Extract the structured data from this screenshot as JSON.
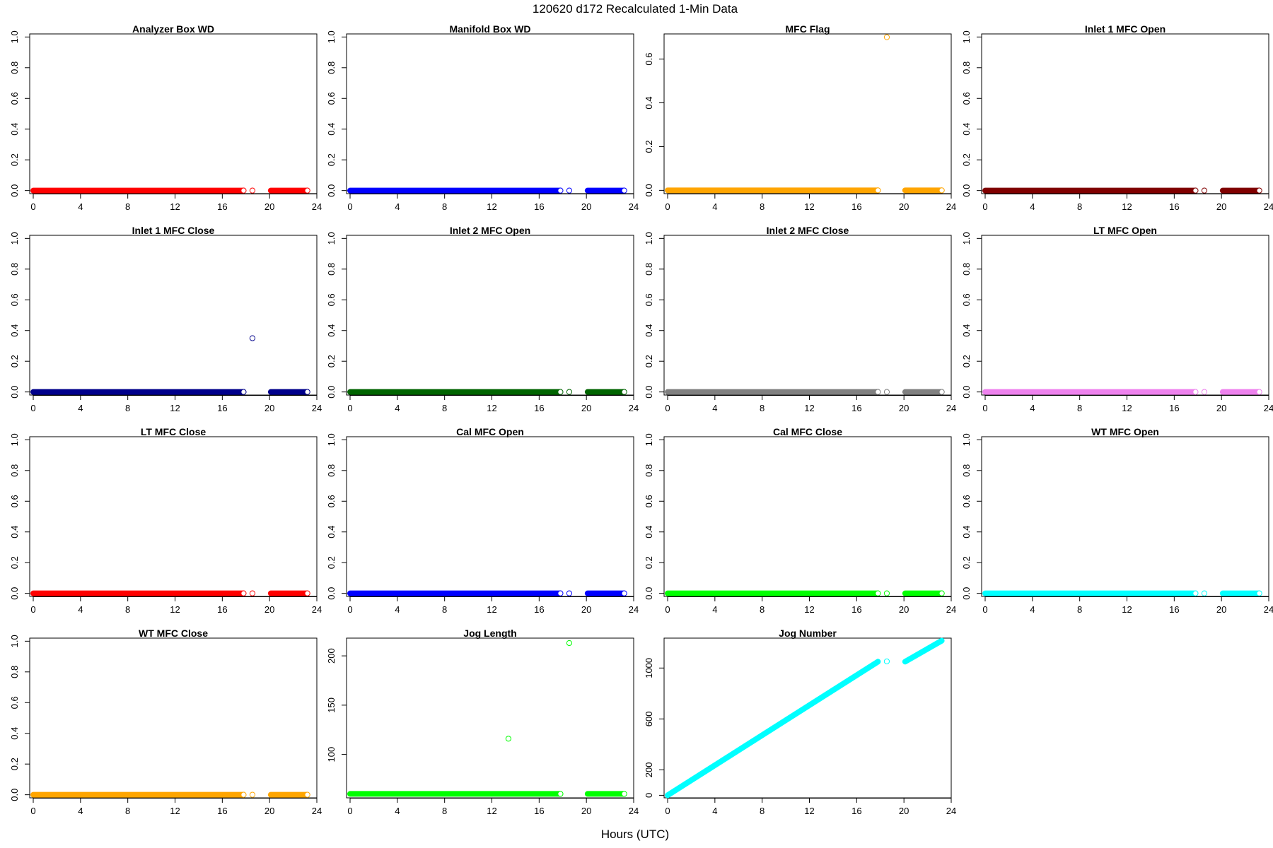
{
  "figure": {
    "title": "120620   d172   Recalculated 1-Min Data",
    "xlabel": "Hours (UTC)"
  },
  "chart_data": [
    {
      "type": "scatter",
      "title": "Analyzer Box WD",
      "color": "#ff0000",
      "xticks": [
        0,
        4,
        8,
        12,
        16,
        20,
        24
      ],
      "yticks": [
        0.0,
        0.2,
        0.4,
        0.6,
        0.8,
        1.0
      ],
      "ylim": [
        -0.02,
        1.02
      ],
      "xlim": [
        -0.3,
        24
      ],
      "segments": [
        {
          "from": 0,
          "to": 17.8,
          "y": 0
        },
        {
          "from": 20.1,
          "to": 23.2,
          "y": 0
        }
      ],
      "points": [
        {
          "x": 18.55,
          "y": 0
        }
      ]
    },
    {
      "type": "scatter",
      "title": "Manifold Box WD",
      "color": "#0000ff",
      "xticks": [
        0,
        4,
        8,
        12,
        16,
        20,
        24
      ],
      "yticks": [
        0.0,
        0.2,
        0.4,
        0.6,
        0.8,
        1.0
      ],
      "ylim": [
        -0.02,
        1.02
      ],
      "xlim": [
        -0.3,
        24
      ],
      "segments": [
        {
          "from": 0,
          "to": 17.8,
          "y": 0
        },
        {
          "from": 20.1,
          "to": 23.2,
          "y": 0
        }
      ],
      "points": [
        {
          "x": 18.55,
          "y": 0
        }
      ]
    },
    {
      "type": "scatter",
      "title": "MFC Flag",
      "color": "#ffa500",
      "xticks": [
        0,
        4,
        8,
        12,
        16,
        20,
        24
      ],
      "yticks": [
        0.0,
        0.2,
        0.4,
        0.6
      ],
      "ylim": [
        -0.015,
        0.715
      ],
      "xlim": [
        -0.3,
        24
      ],
      "segments": [
        {
          "from": 0,
          "to": 17.8,
          "y": 0
        },
        {
          "from": 20.1,
          "to": 23.2,
          "y": 0
        }
      ],
      "points": [
        {
          "x": 18.55,
          "y": 0.7
        }
      ]
    },
    {
      "type": "scatter",
      "title": "Inlet 1 MFC Open",
      "color": "#800000",
      "xticks": [
        0,
        4,
        8,
        12,
        16,
        20,
        24
      ],
      "yticks": [
        0.0,
        0.2,
        0.4,
        0.6,
        0.8,
        1.0
      ],
      "ylim": [
        -0.02,
        1.02
      ],
      "xlim": [
        -0.3,
        24
      ],
      "segments": [
        {
          "from": 0,
          "to": 17.8,
          "y": 0
        },
        {
          "from": 20.1,
          "to": 23.2,
          "y": 0
        }
      ],
      "points": [
        {
          "x": 18.55,
          "y": 0
        }
      ]
    },
    {
      "type": "scatter",
      "title": "Inlet 1 MFC Close",
      "color": "#00008b",
      "xticks": [
        0,
        4,
        8,
        12,
        16,
        20,
        24
      ],
      "yticks": [
        0.0,
        0.2,
        0.4,
        0.6,
        0.8,
        1.0
      ],
      "ylim": [
        -0.02,
        1.02
      ],
      "xlim": [
        -0.3,
        24
      ],
      "segments": [
        {
          "from": 0,
          "to": 17.8,
          "y": 0
        },
        {
          "from": 20.1,
          "to": 23.2,
          "y": 0
        }
      ],
      "points": [
        {
          "x": 18.55,
          "y": 0.35
        }
      ]
    },
    {
      "type": "scatter",
      "title": "Inlet 2 MFC Open",
      "color": "#006400",
      "xticks": [
        0,
        4,
        8,
        12,
        16,
        20,
        24
      ],
      "yticks": [
        0.0,
        0.2,
        0.4,
        0.6,
        0.8,
        1.0
      ],
      "ylim": [
        -0.02,
        1.02
      ],
      "xlim": [
        -0.3,
        24
      ],
      "segments": [
        {
          "from": 0,
          "to": 17.8,
          "y": 0
        },
        {
          "from": 20.1,
          "to": 23.2,
          "y": 0
        }
      ],
      "points": [
        {
          "x": 18.55,
          "y": 0
        }
      ]
    },
    {
      "type": "scatter",
      "title": "Inlet 2 MFC Close",
      "color": "#808080",
      "xticks": [
        0,
        4,
        8,
        12,
        16,
        20,
        24
      ],
      "yticks": [
        0.0,
        0.2,
        0.4,
        0.6,
        0.8,
        1.0
      ],
      "ylim": [
        -0.02,
        1.02
      ],
      "xlim": [
        -0.3,
        24
      ],
      "segments": [
        {
          "from": 0,
          "to": 17.8,
          "y": 0
        },
        {
          "from": 20.1,
          "to": 23.2,
          "y": 0
        }
      ],
      "points": [
        {
          "x": 18.55,
          "y": 0
        }
      ]
    },
    {
      "type": "scatter",
      "title": "LT MFC Open",
      "color": "#ee82ee",
      "xticks": [
        0,
        4,
        8,
        12,
        16,
        20,
        24
      ],
      "yticks": [
        0.0,
        0.2,
        0.4,
        0.6,
        0.8,
        1.0
      ],
      "ylim": [
        -0.02,
        1.02
      ],
      "xlim": [
        -0.3,
        24
      ],
      "segments": [
        {
          "from": 0,
          "to": 17.8,
          "y": 0
        },
        {
          "from": 20.1,
          "to": 23.2,
          "y": 0
        }
      ],
      "points": [
        {
          "x": 18.55,
          "y": 0
        }
      ]
    },
    {
      "type": "scatter",
      "title": "LT MFC Close",
      "color": "#ff0000",
      "xticks": [
        0,
        4,
        8,
        12,
        16,
        20,
        24
      ],
      "yticks": [
        0.0,
        0.2,
        0.4,
        0.6,
        0.8,
        1.0
      ],
      "ylim": [
        -0.02,
        1.02
      ],
      "xlim": [
        -0.3,
        24
      ],
      "segments": [
        {
          "from": 0,
          "to": 17.8,
          "y": 0
        },
        {
          "from": 20.1,
          "to": 23.2,
          "y": 0
        }
      ],
      "points": [
        {
          "x": 18.55,
          "y": 0
        }
      ]
    },
    {
      "type": "scatter",
      "title": "Cal MFC Open",
      "color": "#0000ff",
      "xticks": [
        0,
        4,
        8,
        12,
        16,
        20,
        24
      ],
      "yticks": [
        0.0,
        0.2,
        0.4,
        0.6,
        0.8,
        1.0
      ],
      "ylim": [
        -0.02,
        1.02
      ],
      "xlim": [
        -0.3,
        24
      ],
      "segments": [
        {
          "from": 0,
          "to": 17.8,
          "y": 0
        },
        {
          "from": 20.1,
          "to": 23.2,
          "y": 0
        }
      ],
      "points": [
        {
          "x": 18.55,
          "y": 0
        }
      ]
    },
    {
      "type": "scatter",
      "title": "Cal MFC Close",
      "color": "#00ff00",
      "xticks": [
        0,
        4,
        8,
        12,
        16,
        20,
        24
      ],
      "yticks": [
        0.0,
        0.2,
        0.4,
        0.6,
        0.8,
        1.0
      ],
      "ylim": [
        -0.02,
        1.02
      ],
      "xlim": [
        -0.3,
        24
      ],
      "segments": [
        {
          "from": 0,
          "to": 17.8,
          "y": 0
        },
        {
          "from": 20.1,
          "to": 23.2,
          "y": 0
        }
      ],
      "points": [
        {
          "x": 18.55,
          "y": 0
        }
      ]
    },
    {
      "type": "scatter",
      "title": "WT MFC Open",
      "color": "#00ffff",
      "xticks": [
        0,
        4,
        8,
        12,
        16,
        20,
        24
      ],
      "yticks": [
        0.0,
        0.2,
        0.4,
        0.6,
        0.8,
        1.0
      ],
      "ylim": [
        -0.02,
        1.02
      ],
      "xlim": [
        -0.3,
        24
      ],
      "segments": [
        {
          "from": 0,
          "to": 17.8,
          "y": 0
        },
        {
          "from": 20.1,
          "to": 23.2,
          "y": 0
        }
      ],
      "points": [
        {
          "x": 18.55,
          "y": 0
        }
      ]
    },
    {
      "type": "scatter",
      "title": "WT MFC Close",
      "color": "#ffa500",
      "xticks": [
        0,
        4,
        8,
        12,
        16,
        20,
        24
      ],
      "yticks": [
        0.0,
        0.2,
        0.4,
        0.6,
        0.8,
        1.0
      ],
      "ylim": [
        -0.02,
        1.02
      ],
      "xlim": [
        -0.3,
        24
      ],
      "segments": [
        {
          "from": 0,
          "to": 17.8,
          "y": 0
        },
        {
          "from": 20.1,
          "to": 23.2,
          "y": 0
        }
      ],
      "points": [
        {
          "x": 18.55,
          "y": 0
        }
      ]
    },
    {
      "type": "scatter",
      "title": "Jog Length",
      "color": "#00ff00",
      "xticks": [
        0,
        4,
        8,
        12,
        16,
        20,
        24
      ],
      "yticks": [
        100,
        150,
        200
      ],
      "ylim": [
        56,
        218
      ],
      "xlim": [
        -0.3,
        24
      ],
      "segments": [
        {
          "from": 0,
          "to": 17.8,
          "y": 60
        },
        {
          "from": 20.1,
          "to": 23.2,
          "y": 60
        }
      ],
      "points": [
        {
          "x": 13.4,
          "y": 116
        },
        {
          "x": 18.55,
          "y": 213
        }
      ]
    },
    {
      "type": "scatter",
      "title": "Jog Number",
      "color": "#00ffff",
      "xticks": [
        0,
        4,
        8,
        12,
        16,
        20,
        24
      ],
      "yticks": [
        0,
        200,
        600,
        1000
      ],
      "ylim": [
        -20,
        1235
      ],
      "xlim": [
        -0.3,
        24
      ],
      "lines": [
        {
          "x": [
            0,
            17.8
          ],
          "y": [
            0,
            1050
          ]
        },
        {
          "x": [
            20.1,
            23.2
          ],
          "y": [
            1050,
            1215
          ]
        }
      ],
      "points": [
        {
          "x": 18.55,
          "y": 1052
        }
      ]
    }
  ]
}
